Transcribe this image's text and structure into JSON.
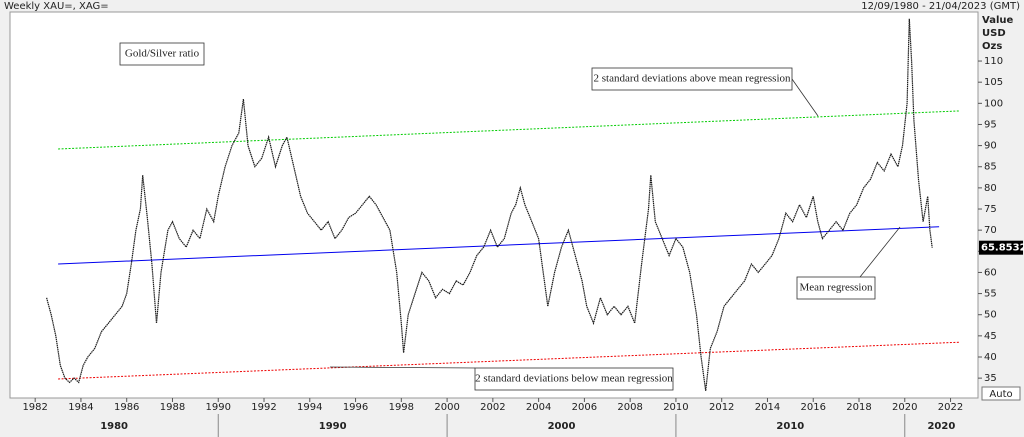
{
  "chart_data": {
    "type": "line",
    "header_left": "Weekly XAU=, XAG=",
    "header_right": "12/09/1980 - 21/04/2023 (GMT)",
    "y_axis_label": [
      "Value",
      "USD",
      "Ozs"
    ],
    "auto_button": "Auto",
    "xlim": [
      1980.9,
      2023.2
    ],
    "ylim": [
      30.3,
      121.6
    ],
    "xticks": [
      1982,
      1984,
      1986,
      1988,
      1990,
      1992,
      1994,
      1996,
      1998,
      2000,
      2002,
      2004,
      2006,
      2008,
      2010,
      2012,
      2014,
      2016,
      2018,
      2020,
      2022
    ],
    "decades": [
      1980,
      1990,
      2000,
      2010,
      2020
    ],
    "yticks": [
      35,
      40,
      45,
      50,
      55,
      60,
      65,
      70,
      75,
      80,
      85,
      90,
      95,
      100,
      105,
      110
    ],
    "series": [
      {
        "name": "Gold/Silver ratio",
        "color": "#1a1a1a",
        "x": [
          1982.5,
          1982.7,
          1982.9,
          1983.1,
          1983.3,
          1983.5,
          1983.7,
          1983.9,
          1984.1,
          1984.3,
          1984.6,
          1984.9,
          1985.2,
          1985.5,
          1985.8,
          1986.0,
          1986.2,
          1986.4,
          1986.6,
          1986.7,
          1986.9,
          1987.1,
          1987.3,
          1987.5,
          1987.8,
          1988.0,
          1988.3,
          1988.6,
          1988.9,
          1989.2,
          1989.5,
          1989.8,
          1990.0,
          1990.3,
          1990.6,
          1990.9,
          1991.1,
          1991.3,
          1991.6,
          1991.9,
          1992.2,
          1992.5,
          1992.8,
          1993.0,
          1993.3,
          1993.6,
          1993.9,
          1994.2,
          1994.5,
          1994.8,
          1995.1,
          1995.4,
          1995.7,
          1996.0,
          1996.3,
          1996.6,
          1996.9,
          1997.2,
          1997.5,
          1997.8,
          1998.0,
          1998.1,
          1998.3,
          1998.6,
          1998.9,
          1999.2,
          1999.5,
          1999.8,
          2000.1,
          2000.4,
          2000.7,
          2001.0,
          2001.3,
          2001.6,
          2001.9,
          2002.2,
          2002.5,
          2002.8,
          2003.0,
          2003.2,
          2003.4,
          2003.7,
          2004.0,
          2004.2,
          2004.4,
          2004.7,
          2005.0,
          2005.3,
          2005.6,
          2005.9,
          2006.1,
          2006.4,
          2006.7,
          2007.0,
          2007.3,
          2007.6,
          2007.9,
          2008.2,
          2008.5,
          2008.8,
          2008.9,
          2009.1,
          2009.4,
          2009.7,
          2010.0,
          2010.3,
          2010.6,
          2010.9,
          2011.1,
          2011.3,
          2011.5,
          2011.8,
          2012.1,
          2012.4,
          2012.7,
          2013.0,
          2013.3,
          2013.6,
          2013.9,
          2014.2,
          2014.5,
          2014.8,
          2015.1,
          2015.4,
          2015.7,
          2016.0,
          2016.2,
          2016.4,
          2016.7,
          2017.0,
          2017.3,
          2017.6,
          2017.9,
          2018.2,
          2018.5,
          2018.8,
          2019.1,
          2019.4,
          2019.7,
          2019.9,
          2020.1,
          2020.2,
          2020.3,
          2020.4,
          2020.6,
          2020.8,
          2021.0,
          2021.1,
          2021.2
        ],
        "values": [
          54,
          50,
          45,
          38,
          35,
          34,
          35,
          34,
          38,
          40,
          42,
          46,
          48,
          50,
          52,
          55,
          62,
          70,
          75,
          83,
          73,
          62,
          48,
          60,
          70,
          72,
          68,
          66,
          70,
          68,
          75,
          72,
          78,
          85,
          90,
          93,
          101,
          90,
          85,
          87,
          92,
          85,
          90,
          92,
          85,
          78,
          74,
          72,
          70,
          72,
          68,
          70,
          73,
          74,
          76,
          78,
          76,
          73,
          70,
          60,
          48,
          41,
          50,
          55,
          60,
          58,
          54,
          56,
          55,
          58,
          57,
          60,
          64,
          66,
          70,
          66,
          68,
          74,
          76,
          80,
          76,
          72,
          68,
          60,
          52,
          60,
          66,
          70,
          64,
          58,
          52,
          48,
          54,
          50,
          52,
          50,
          52,
          48,
          62,
          75,
          83,
          72,
          68,
          64,
          68,
          66,
          60,
          50,
          40,
          32,
          42,
          46,
          52,
          54,
          56,
          58,
          62,
          60,
          62,
          64,
          68,
          74,
          72,
          76,
          73,
          78,
          72,
          68,
          70,
          72,
          70,
          74,
          76,
          80,
          82,
          86,
          84,
          88,
          85,
          90,
          100,
          120,
          110,
          96,
          82,
          72,
          78,
          70,
          65.8532
        ]
      }
    ],
    "lines": [
      {
        "name": "2 standard deviations above mean regression",
        "color": "#00cc00",
        "x": [
          1983.0,
          2022.4
        ],
        "values": [
          89.2,
          98.2
        ]
      },
      {
        "name": "Mean regression",
        "color": "#0000ee",
        "x": [
          1983.0,
          2021.5
        ],
        "values": [
          62,
          70.8
        ]
      },
      {
        "name": "2 standard deviations below mean regression",
        "color": "#ee0000",
        "x": [
          1983.0,
          2022.4
        ],
        "values": [
          34.8,
          43.5
        ]
      }
    ]
  }
}
